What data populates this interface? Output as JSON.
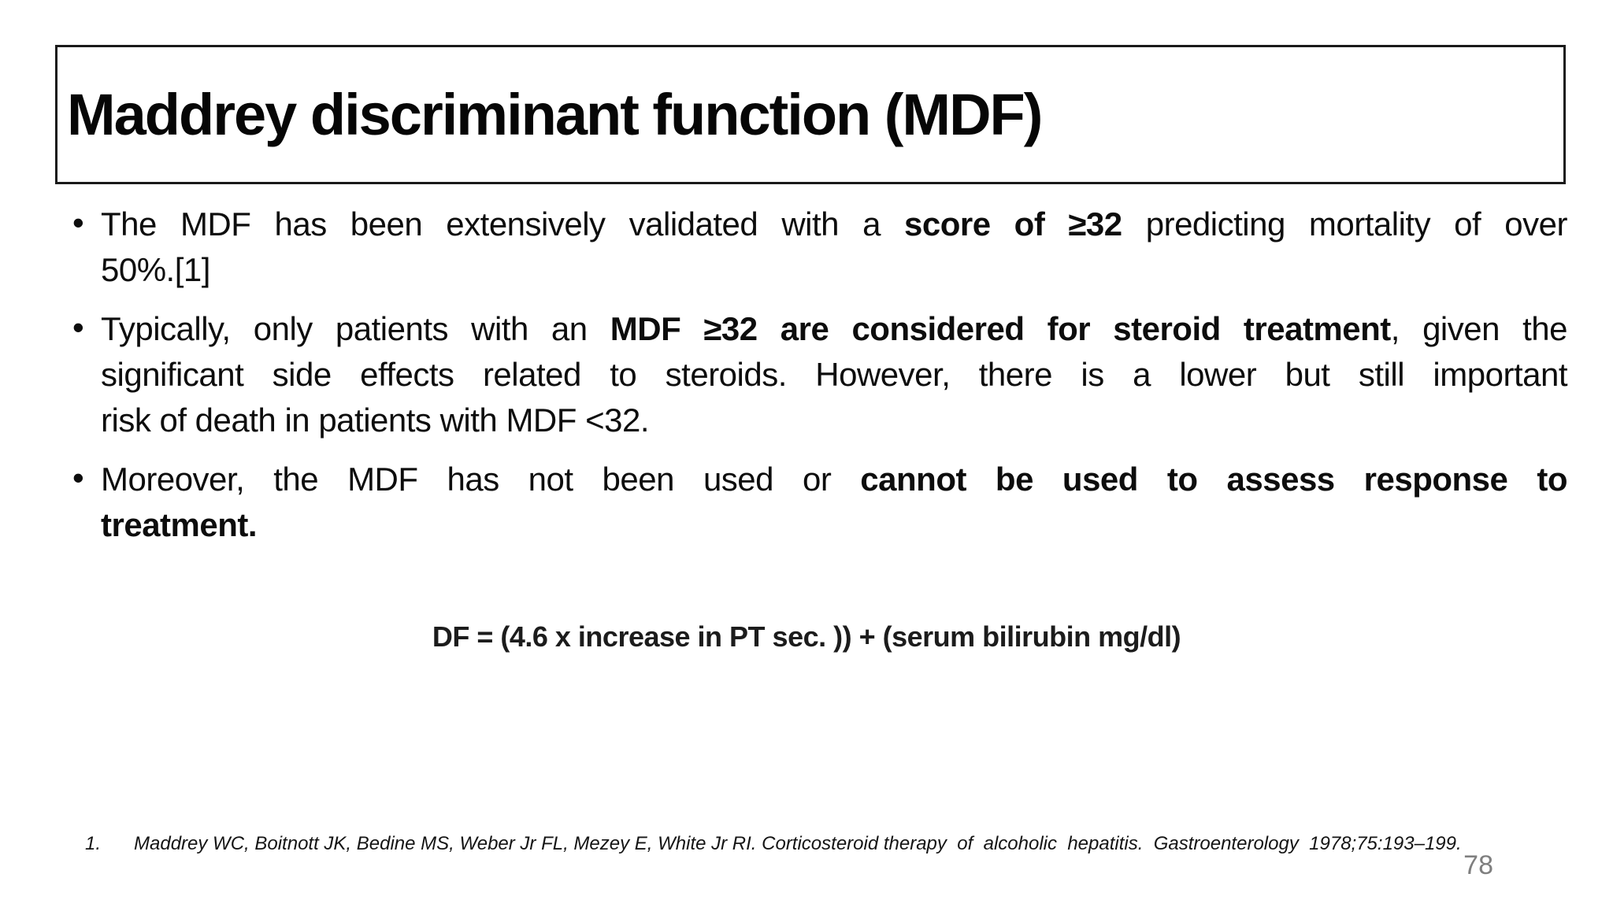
{
  "title": {
    "text": "Maddrey discriminant function (MDF)"
  },
  "bullet_glyph": "•",
  "bullets": [
    {
      "lines": [
        {
          "segments": [
            {
              "text": "The MDF has been extensively validated with a ",
              "bold": false
            },
            {
              "text": "score of ≥32",
              "bold": true
            },
            {
              "text": " predicting mortality of over",
              "bold": false
            }
          ]
        },
        {
          "segments": [
            {
              "text": "50%.[1]",
              "bold": false
            }
          ]
        }
      ]
    },
    {
      "lines": [
        {
          "segments": [
            {
              "text": "Typically, only patients with an ",
              "bold": false
            },
            {
              "text": "MDF ≥32 are considered for steroid treatment",
              "bold": true
            },
            {
              "text": ", given the",
              "bold": false
            }
          ]
        },
        {
          "segments": [
            {
              "text": "significant side effects related to steroids. However, there is a lower but still important",
              "bold": false
            }
          ]
        },
        {
          "segments": [
            {
              "text": "risk of death in patients with MDF <32.",
              "bold": false
            }
          ]
        }
      ]
    },
    {
      "lines": [
        {
          "segments": [
            {
              "text": "Moreover, the MDF has not been used or ",
              "bold": false
            },
            {
              "text": "cannot be used to assess response to",
              "bold": true
            }
          ]
        },
        {
          "segments": [
            {
              "text": "treatment.",
              "bold": true
            }
          ]
        }
      ]
    }
  ],
  "formula": {
    "text": "DF = (4.6 x increase in PT sec. )) + (serum bilirubin mg/dl)"
  },
  "reference": {
    "number": "1.",
    "text": "Maddrey WC, Boitnott JK, Bedine MS, Weber Jr FL, Mezey E, White Jr RI. Corticosteroid therapy  of  alcoholic  hepatitis.  Gastroenterology  1978;75:193–199."
  },
  "page_number": "78",
  "colors": {
    "text": "#0d0d0d",
    "border": "#1a1a1a",
    "page_number": "#7f7f7f"
  }
}
